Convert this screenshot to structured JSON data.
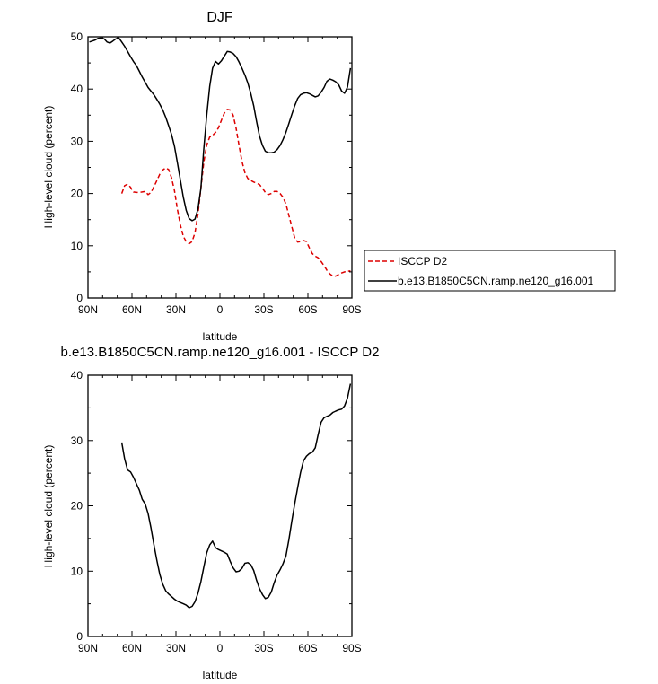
{
  "chart_data": [
    {
      "type": "line",
      "title": "DJF",
      "xlabel": "latitude",
      "ylabel": "High-level cloud (percent)",
      "xlim": [
        90,
        -90
      ],
      "ylim": [
        0,
        50
      ],
      "x_ticks": [
        90,
        60,
        30,
        0,
        -30,
        -60,
        -90
      ],
      "x_tick_labels": [
        "90N",
        "60N",
        "30N",
        "0",
        "30S",
        "60S",
        "90S"
      ],
      "y_ticks": [
        0,
        10,
        20,
        30,
        40,
        50
      ],
      "y_tick_labels": [
        "0",
        "10",
        "20",
        "30",
        "40",
        "50"
      ],
      "legend_position": "right",
      "legend": [
        {
          "label": "ISCCP D2",
          "color": "#dd0000",
          "style": "dashed"
        },
        {
          "label": "b.e13.B1850C5CN.ramp.ne120_g16.001",
          "color": "#000000",
          "style": "solid"
        }
      ],
      "series": [
        {
          "name": "ISCCP D2",
          "color": "#dd0000",
          "style": "dashed",
          "x": [
            67,
            65,
            63,
            61,
            59,
            57,
            55,
            53,
            51,
            49,
            47,
            45,
            43,
            41,
            39,
            37,
            35,
            33,
            31,
            29,
            27,
            25,
            23,
            21,
            19,
            17,
            15,
            13,
            11,
            9,
            7,
            5,
            3,
            1,
            -1,
            -3,
            -5,
            -7,
            -9,
            -11,
            -13,
            -15,
            -17,
            -19,
            -21,
            -23,
            -25,
            -27,
            -29,
            -31,
            -33,
            -35,
            -37,
            -39,
            -41,
            -43,
            -45,
            -47,
            -49,
            -51,
            -53,
            -55,
            -57,
            -59,
            -61,
            -63,
            -65,
            -67,
            -69,
            -71,
            -73,
            -75,
            -77,
            -79,
            -81,
            -83,
            -85,
            -87,
            -89
          ],
          "y": [
            20.0,
            21.5,
            21.8,
            21.2,
            20.3,
            20.2,
            20.2,
            20.3,
            20.4,
            19.8,
            20.2,
            21.3,
            22.5,
            23.7,
            24.5,
            24.9,
            24.6,
            23.0,
            20.5,
            17.0,
            14.0,
            11.8,
            10.8,
            10.4,
            10.8,
            12.5,
            16.0,
            21.0,
            26.0,
            29.3,
            30.8,
            31.1,
            31.7,
            32.6,
            34.0,
            35.4,
            36.1,
            36.0,
            35.0,
            32.5,
            29.3,
            26.2,
            24.0,
            22.9,
            22.5,
            22.2,
            22.0,
            21.7,
            21.0,
            20.2,
            19.8,
            20.0,
            20.4,
            20.4,
            20.0,
            19.3,
            18.0,
            15.8,
            13.7,
            11.5,
            10.7,
            10.8,
            11.0,
            10.8,
            9.6,
            8.5,
            8.0,
            7.7,
            7.0,
            6.2,
            5.3,
            4.6,
            4.2,
            4.2,
            4.5,
            4.8,
            5.0,
            5.1,
            5.2
          ]
        },
        {
          "name": "b.e13.B1850C5CN.ramp.ne120_g16.001",
          "color": "#000000",
          "style": "solid",
          "x": [
            89,
            87,
            85,
            83,
            81,
            79,
            77,
            75,
            73,
            71,
            69,
            67,
            65,
            63,
            61,
            59,
            57,
            55,
            53,
            51,
            49,
            47,
            45,
            43,
            41,
            39,
            37,
            35,
            33,
            31,
            29,
            27,
            25,
            23,
            21,
            19,
            17,
            15,
            13,
            11,
            9,
            7,
            5,
            3,
            1,
            -1,
            -3,
            -5,
            -7,
            -9,
            -11,
            -13,
            -15,
            -17,
            -19,
            -21,
            -23,
            -25,
            -27,
            -29,
            -31,
            -33,
            -35,
            -37,
            -39,
            -41,
            -43,
            -45,
            -47,
            -49,
            -51,
            -53,
            -55,
            -57,
            -59,
            -61,
            -63,
            -65,
            -67,
            -69,
            -71,
            -73,
            -75,
            -77,
            -79,
            -81,
            -83,
            -85,
            -87,
            -89
          ],
          "y": [
            49.0,
            49.2,
            49.4,
            49.7,
            49.8,
            49.6,
            49.0,
            48.8,
            49.2,
            49.6,
            49.8,
            49.0,
            48.2,
            47.2,
            46.2,
            45.3,
            44.5,
            43.4,
            42.3,
            41.3,
            40.3,
            39.6,
            38.9,
            38.0,
            37.1,
            36.0,
            34.6,
            33.0,
            31.3,
            29.0,
            25.9,
            22.6,
            19.3,
            16.8,
            15.2,
            14.8,
            15.1,
            17.0,
            21.0,
            28.5,
            35.0,
            40.5,
            44.0,
            45.3,
            44.8,
            45.4,
            46.3,
            47.2,
            47.1,
            46.8,
            46.2,
            45.2,
            44.0,
            42.7,
            41.2,
            39.2,
            36.8,
            33.8,
            31.0,
            29.2,
            28.1,
            27.8,
            27.8,
            27.9,
            28.4,
            29.2,
            30.3,
            31.7,
            33.4,
            35.1,
            36.8,
            38.2,
            38.9,
            39.2,
            39.3,
            39.1,
            38.8,
            38.5,
            38.7,
            39.4,
            40.3,
            41.5,
            41.9,
            41.7,
            41.4,
            40.8,
            39.6,
            39.2,
            40.4,
            44.0
          ]
        }
      ]
    },
    {
      "type": "line",
      "title": "b.e13.B1850C5CN.ramp.ne120_g16.001 - ISCCP D2",
      "xlabel": "latitude",
      "ylabel": "High-level cloud (percent)",
      "xlim": [
        90,
        -90
      ],
      "ylim": [
        0,
        40
      ],
      "x_ticks": [
        90,
        60,
        30,
        0,
        -30,
        -60,
        -90
      ],
      "x_tick_labels": [
        "90N",
        "60N",
        "30N",
        "0",
        "30S",
        "60S",
        "90S"
      ],
      "y_ticks": [
        0,
        10,
        20,
        30,
        40
      ],
      "y_tick_labels": [
        "0",
        "10",
        "20",
        "30",
        "40"
      ],
      "series": [
        {
          "name": "b.e13.B1850C5CN.ramp.ne120_g16.001 - ISCCP D2",
          "color": "#000000",
          "style": "solid",
          "x": [
            67,
            65,
            63,
            61,
            59,
            57,
            55,
            53,
            51,
            49,
            47,
            45,
            43,
            41,
            39,
            37,
            35,
            33,
            31,
            29,
            27,
            25,
            23,
            21,
            19,
            17,
            15,
            13,
            11,
            9,
            7,
            5,
            3,
            1,
            -1,
            -3,
            -5,
            -7,
            -9,
            -11,
            -13,
            -15,
            -17,
            -19,
            -21,
            -23,
            -25,
            -27,
            -29,
            -31,
            -33,
            -35,
            -37,
            -39,
            -41,
            -43,
            -45,
            -47,
            -49,
            -51,
            -53,
            -55,
            -57,
            -59,
            -61,
            -63,
            -65,
            -67,
            -69,
            -71,
            -73,
            -75,
            -77,
            -79,
            -81,
            -83,
            -85,
            -87,
            -89
          ],
          "y": [
            29.7,
            27.2,
            25.5,
            25.2,
            24.4,
            23.4,
            22.4,
            21.0,
            20.3,
            18.8,
            16.6,
            14.0,
            11.6,
            9.5,
            8.0,
            7.0,
            6.5,
            6.1,
            5.7,
            5.4,
            5.2,
            5.0,
            4.8,
            4.4,
            4.6,
            5.3,
            6.6,
            8.4,
            10.6,
            12.8,
            14.0,
            14.6,
            13.6,
            13.3,
            13.1,
            12.9,
            12.6,
            11.5,
            10.5,
            9.9,
            10.0,
            10.4,
            11.2,
            11.3,
            11.0,
            10.1,
            8.6,
            7.3,
            6.4,
            5.8,
            6.0,
            6.8,
            8.2,
            9.4,
            10.2,
            11.1,
            12.3,
            14.8,
            17.6,
            20.3,
            22.8,
            25.1,
            26.9,
            27.6,
            28.0,
            28.2,
            28.9,
            30.9,
            32.8,
            33.5,
            33.7,
            33.9,
            34.3,
            34.5,
            34.7,
            34.8,
            35.3,
            36.5,
            38.7
          ]
        }
      ]
    }
  ]
}
